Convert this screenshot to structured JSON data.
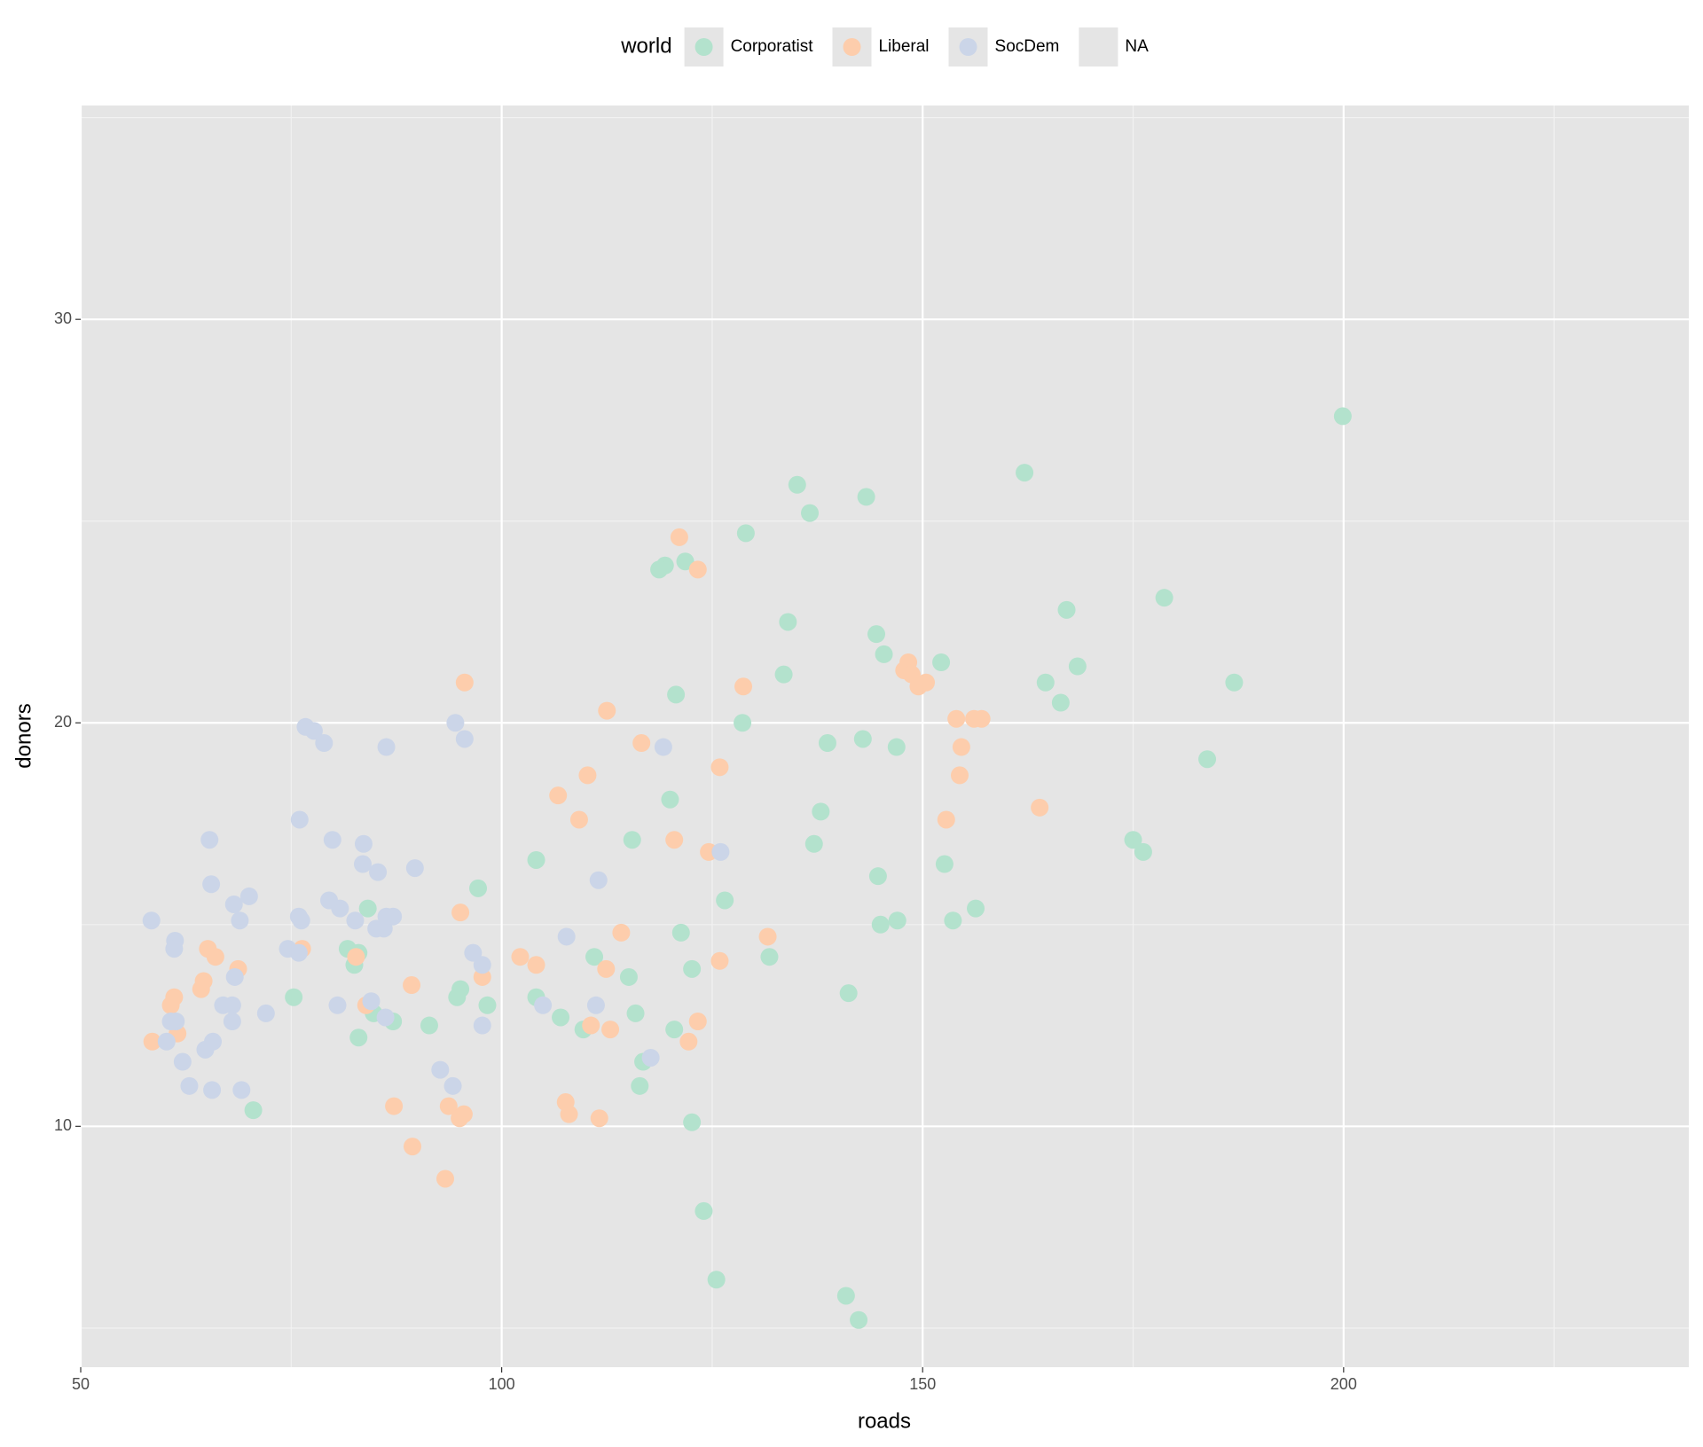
{
  "chart_data": {
    "type": "scatter",
    "x_label": "roads",
    "y_label": "donors",
    "legend_title": "world",
    "legend_position": "top",
    "grid": true,
    "xlim": [
      50,
      241
    ],
    "ylim": [
      4.03,
      35.3
    ],
    "xticks": [
      50,
      100,
      150,
      200
    ],
    "yticks": [
      10,
      20,
      30
    ],
    "xminor": [
      75,
      125,
      175,
      225
    ],
    "yminor": [
      5,
      15,
      25,
      35
    ],
    "series": [
      {
        "name": "Corporatist",
        "color": "#b3e2cd",
        "x": [
          199.9,
          162.1,
          135.1,
          143.3,
          136.6,
          129.0,
          121.8,
          119.4,
          118.7,
          178.7,
          167.1,
          134.0,
          144.5,
          145.4,
          152.2,
          168.4,
          133.5,
          164.6,
          187.0,
          120.7,
          166.4,
          128.6,
          183.8,
          142.9,
          138.7,
          146.9,
          120.0,
          137.9,
          115.5,
          137.1,
          175.0,
          176.2,
          104.1,
          152.6,
          144.7,
          97.2,
          126.5,
          84.1,
          156.3,
          147.0,
          153.6,
          145.0,
          121.3,
          81.7,
          83.0,
          82.5,
          111.0,
          131.8,
          122.6,
          115.1,
          95.1,
          94.7,
          75.3,
          104.1,
          141.2,
          98.3,
          84.8,
          115.9,
          107.0,
          87.1,
          91.4,
          109.7,
          120.5,
          83.0,
          116.8,
          116.4,
          70.5,
          122.6,
          124.0,
          125.5,
          140.9,
          142.4
        ],
        "y": [
          27.6,
          26.2,
          25.9,
          25.6,
          25.2,
          24.7,
          24.0,
          23.9,
          23.8,
          23.1,
          22.8,
          22.5,
          22.2,
          21.7,
          21.5,
          21.4,
          21.2,
          21.0,
          21.0,
          20.7,
          20.5,
          20.0,
          19.1,
          19.6,
          19.5,
          19.4,
          18.1,
          17.8,
          17.1,
          17.0,
          17.1,
          16.8,
          16.6,
          16.5,
          16.2,
          15.9,
          15.6,
          15.4,
          15.4,
          15.1,
          15.1,
          15.0,
          14.8,
          14.4,
          14.3,
          14.0,
          14.2,
          14.2,
          13.9,
          13.7,
          13.4,
          13.2,
          13.2,
          13.2,
          13.3,
          13.0,
          12.8,
          12.8,
          12.7,
          12.6,
          12.5,
          12.4,
          12.4,
          12.2,
          11.6,
          11.0,
          10.4,
          10.1,
          7.9,
          6.2,
          5.8,
          5.2
        ]
      },
      {
        "name": "Liberal",
        "color": "#fdcdac",
        "x": [
          121.1,
          123.3,
          95.6,
          128.7,
          148.3,
          147.8,
          149.5,
          150.4,
          148.7,
          112.5,
          154.0,
          156.1,
          157.0,
          116.6,
          154.6,
          125.9,
          110.2,
          154.4,
          106.7,
          163.9,
          109.2,
          152.8,
          120.5,
          124.6,
          95.1,
          114.2,
          131.6,
          76.3,
          65.1,
          66.0,
          82.7,
          102.2,
          104.1,
          125.9,
          68.7,
          112.4,
          97.7,
          64.6,
          64.3,
          89.3,
          61.1,
          60.7,
          83.9,
          110.6,
          123.3,
          61.5,
          112.9,
          58.5,
          122.2,
          87.2,
          93.7,
          107.6,
          95.5,
          95.0,
          108.0,
          111.6,
          89.4,
          93.3
        ],
        "y": [
          24.6,
          23.8,
          21.0,
          20.9,
          21.5,
          21.3,
          20.9,
          21.0,
          21.2,
          20.3,
          20.1,
          20.1,
          20.1,
          19.5,
          19.4,
          18.9,
          18.7,
          18.7,
          18.2,
          17.9,
          17.6,
          17.6,
          17.1,
          16.8,
          15.3,
          14.8,
          14.7,
          14.4,
          14.4,
          14.2,
          14.2,
          14.2,
          14.0,
          14.1,
          13.9,
          13.9,
          13.7,
          13.6,
          13.4,
          13.5,
          13.2,
          13.0,
          13.0,
          12.5,
          12.6,
          12.3,
          12.4,
          12.1,
          12.1,
          10.5,
          10.5,
          10.6,
          10.3,
          10.2,
          10.3,
          10.2,
          9.5,
          8.7
        ]
      },
      {
        "name": "SocDem",
        "color": "#cbd5e8",
        "x": [
          76.7,
          77.7,
          78.9,
          94.5,
          95.6,
          86.3,
          119.2,
          76.0,
          65.3,
          79.9,
          83.6,
          126.0,
          83.5,
          89.7,
          85.3,
          111.5,
          65.5,
          70.0,
          68.2,
          79.5,
          80.8,
          75.9,
          76.2,
          68.9,
          58.4,
          82.6,
          86.3,
          87.1,
          85.1,
          86.0,
          107.7,
          61.2,
          61.1,
          74.6,
          75.9,
          96.6,
          97.7,
          68.3,
          68.0,
          66.9,
          84.5,
          80.5,
          104.9,
          111.2,
          72.0,
          86.2,
          60.7,
          61.3,
          68.0,
          97.7,
          60.2,
          65.7,
          64.8,
          62.1,
          117.7,
          92.7,
          62.9,
          65.6,
          69.1,
          94.2
        ],
        "y": [
          19.9,
          19.8,
          19.5,
          20.0,
          19.6,
          19.4,
          19.4,
          17.6,
          17.1,
          17.1,
          17.0,
          16.8,
          16.5,
          16.4,
          16.3,
          16.1,
          16.0,
          15.7,
          15.5,
          15.6,
          15.4,
          15.2,
          15.1,
          15.1,
          15.1,
          15.1,
          15.2,
          15.2,
          14.9,
          14.9,
          14.7,
          14.6,
          14.4,
          14.4,
          14.3,
          14.3,
          14.0,
          13.7,
          13.0,
          13.0,
          13.1,
          13.0,
          13.0,
          13.0,
          12.8,
          12.7,
          12.6,
          12.6,
          12.6,
          12.5,
          12.1,
          12.1,
          11.9,
          11.6,
          11.7,
          11.4,
          11.0,
          10.9,
          10.9,
          11.0
        ]
      },
      {
        "name": "NA",
        "x": [],
        "y": []
      }
    ]
  }
}
